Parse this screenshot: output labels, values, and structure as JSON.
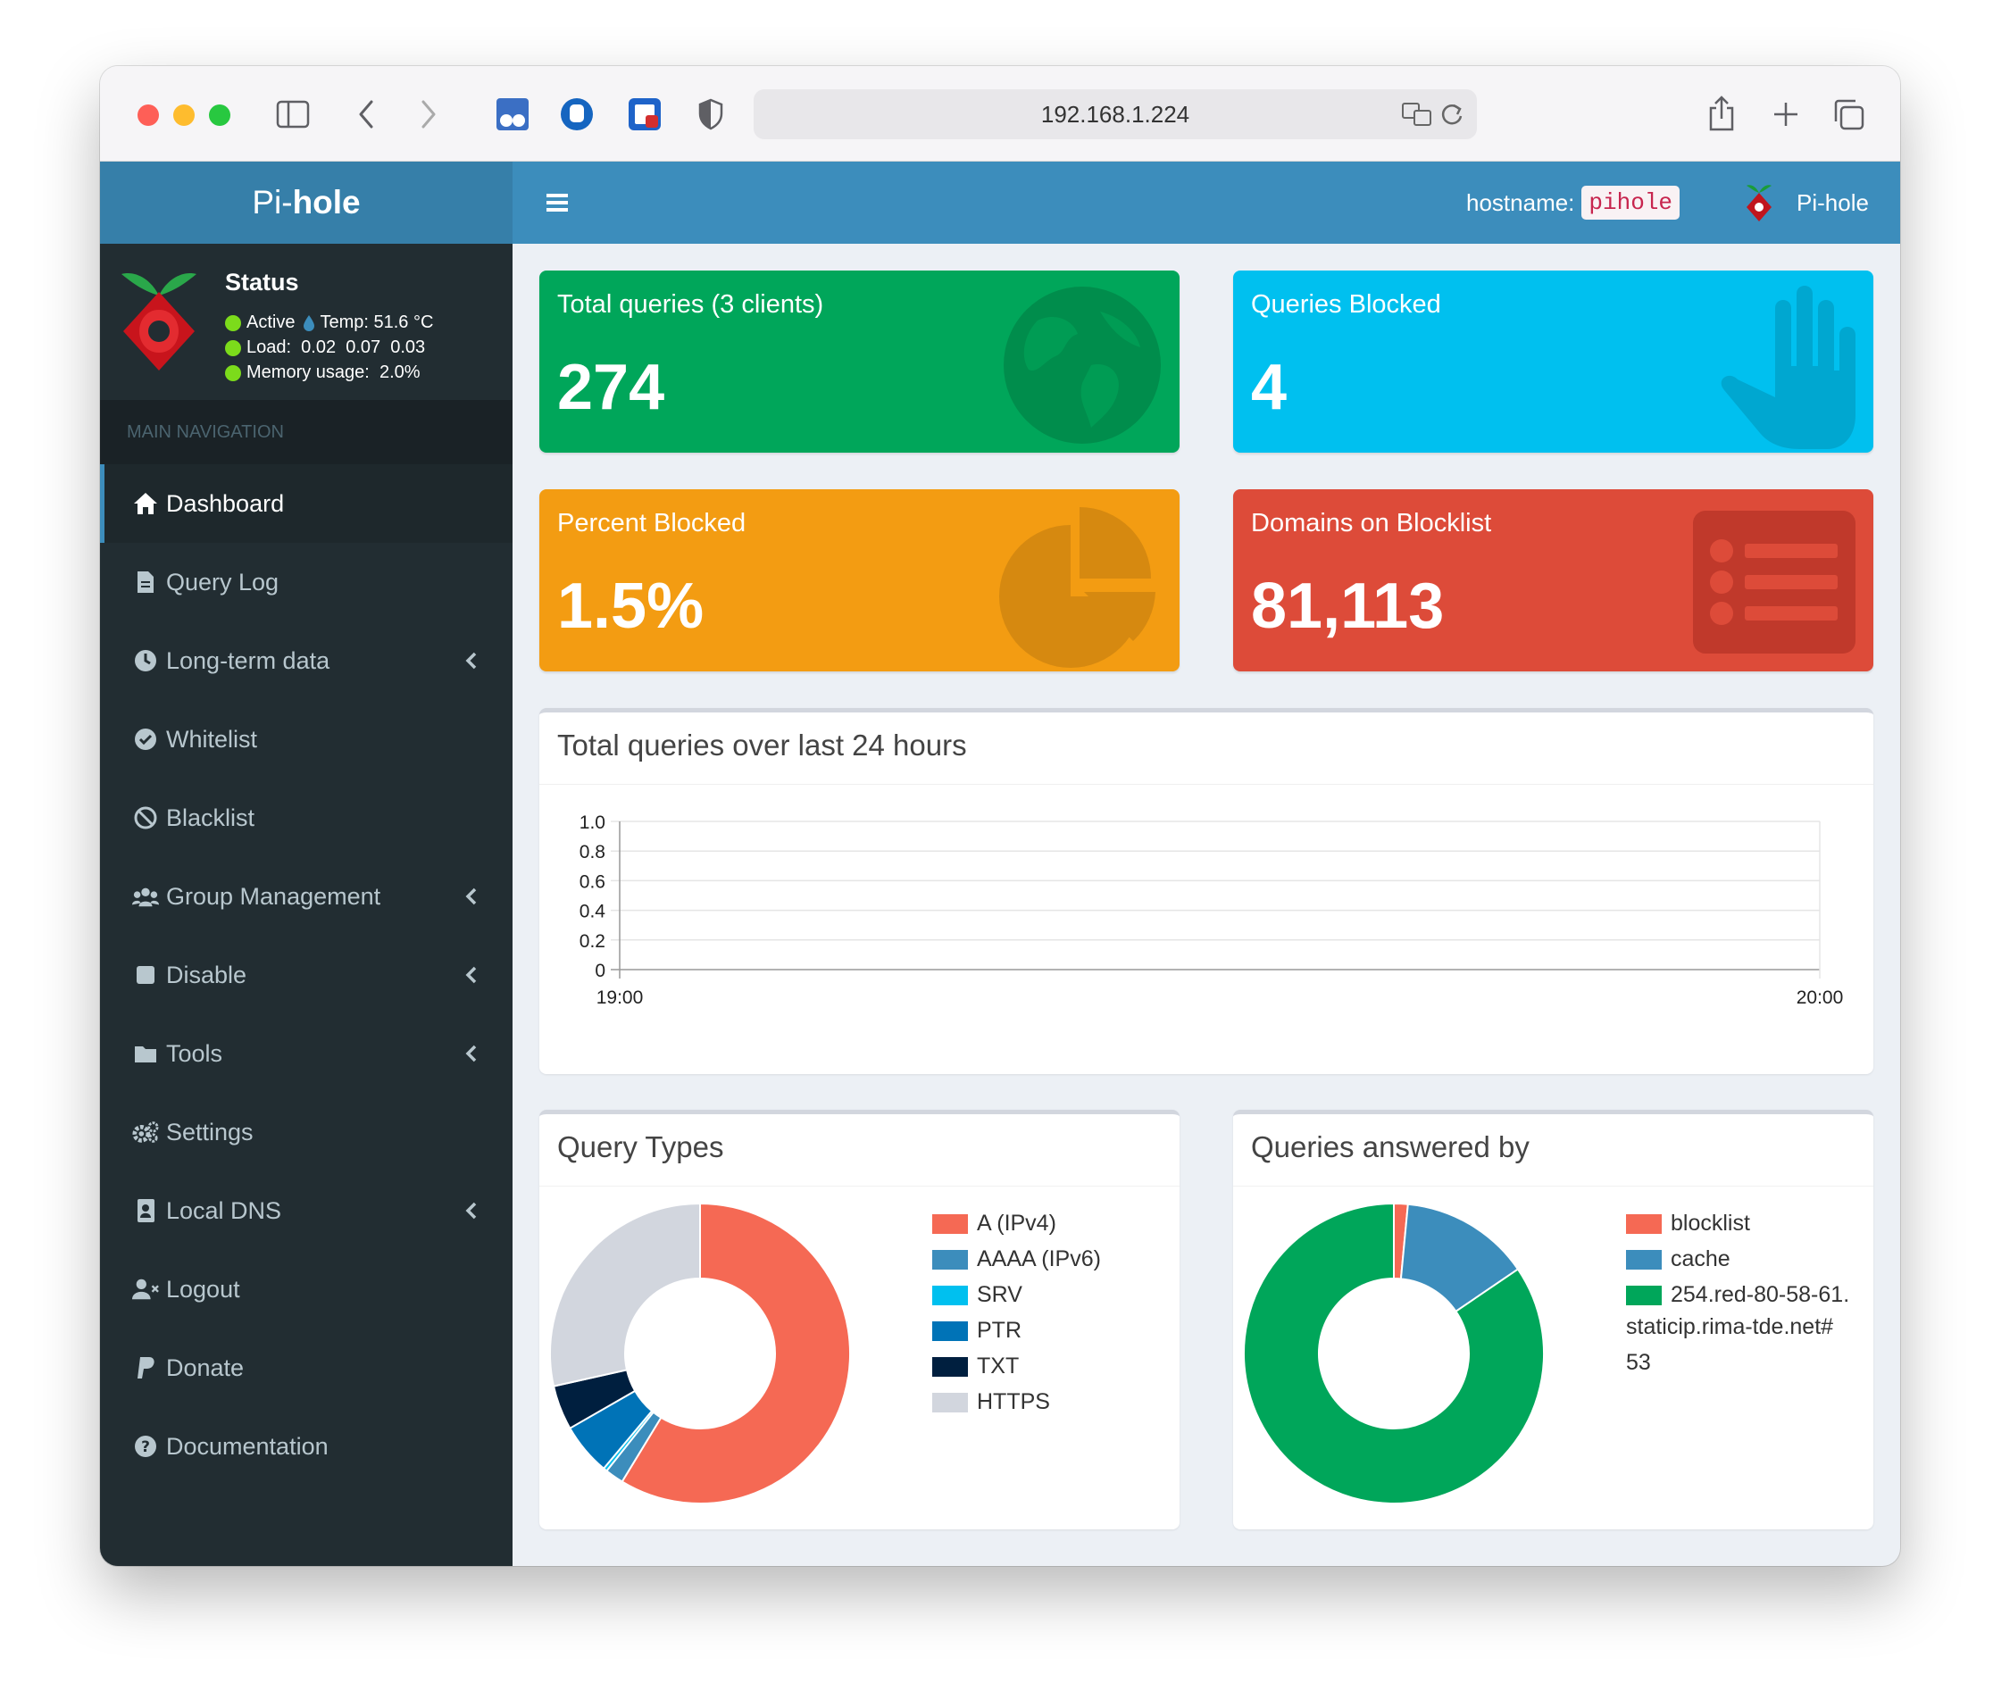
{
  "browser": {
    "url": "192.168.1.224"
  },
  "header": {
    "logo_light": "Pi-",
    "logo_bold": "hole",
    "hostname_label": "hostname:",
    "hostname_value": "pihole",
    "user_label": "Pi-hole"
  },
  "status": {
    "title": "Status",
    "active": "Active",
    "temp": "Temp: 51.6 °C",
    "load": "Load:  0.02  0.07  0.03",
    "memory": "Memory usage:  2.0%"
  },
  "nav": {
    "header": "MAIN NAVIGATION",
    "items": [
      {
        "label": "Dashboard",
        "icon": "home-icon"
      },
      {
        "label": "Query Log",
        "icon": "file-icon"
      },
      {
        "label": "Long-term data",
        "icon": "clock-icon"
      },
      {
        "label": "Whitelist",
        "icon": "check-circle-icon"
      },
      {
        "label": "Blacklist",
        "icon": "ban-icon"
      },
      {
        "label": "Group Management",
        "icon": "users-icon"
      },
      {
        "label": "Disable",
        "icon": "stop-icon"
      },
      {
        "label": "Tools",
        "icon": "folder-icon"
      },
      {
        "label": "Settings",
        "icon": "gears-icon"
      },
      {
        "label": "Local DNS",
        "icon": "address-book-icon"
      },
      {
        "label": "Logout",
        "icon": "user-times-icon"
      },
      {
        "label": "Donate",
        "icon": "paypal-icon"
      },
      {
        "label": "Documentation",
        "icon": "question-circle-icon"
      }
    ]
  },
  "stats": {
    "total_queries_label": "Total queries (3 clients)",
    "total_queries_value": "274",
    "blocked_label": "Queries Blocked",
    "blocked_value": "4",
    "percent_label": "Percent Blocked",
    "percent_value": "1.5%",
    "domains_label": "Domains on Blocklist",
    "domains_value": "81,113"
  },
  "colors": {
    "green": "#00a65a",
    "aqua": "#00c0ef",
    "yellow": "#f39c12",
    "red": "#dd4b39",
    "header": "#3c8dbc"
  },
  "panels": {
    "overtime_title": "Total queries over last 24 hours",
    "query_types_title": "Query Types",
    "answered_by_title": "Queries answered by"
  },
  "chart_data": [
    {
      "type": "line",
      "title": "Total queries over last 24 hours",
      "x": [
        "19:00",
        "20:00"
      ],
      "series": [],
      "ylim": [
        0,
        1.0
      ],
      "yticks": [
        "1.0",
        "0.8",
        "0.6",
        "0.4",
        "0.2",
        "0"
      ],
      "grid": true
    },
    {
      "type": "pie",
      "title": "Query Types",
      "labels": [
        "A (IPv4)",
        "AAAA (IPv6)",
        "SRV",
        "PTR",
        "TXT",
        "HTTPS"
      ],
      "values": [
        58.7,
        2.0,
        0.4,
        5.6,
        4.8,
        28.5
      ],
      "colors": [
        "#f56954",
        "#3c8dbc",
        "#00c0ef",
        "#0073b7",
        "#001f3f",
        "#d2d6de"
      ]
    },
    {
      "type": "pie",
      "title": "Queries answered by",
      "labels": [
        "blocklist",
        "cache",
        "254.red-80-58-61.staticip.rima-tde.net#53"
      ],
      "legend_lines": [
        "254.red-80-58-61.",
        "staticip.rima-tde.net#",
        "53"
      ],
      "values": [
        1.5,
        14.0,
        84.5
      ],
      "colors": [
        "#f56954",
        "#3c8dbc",
        "#00a65a"
      ]
    }
  ]
}
